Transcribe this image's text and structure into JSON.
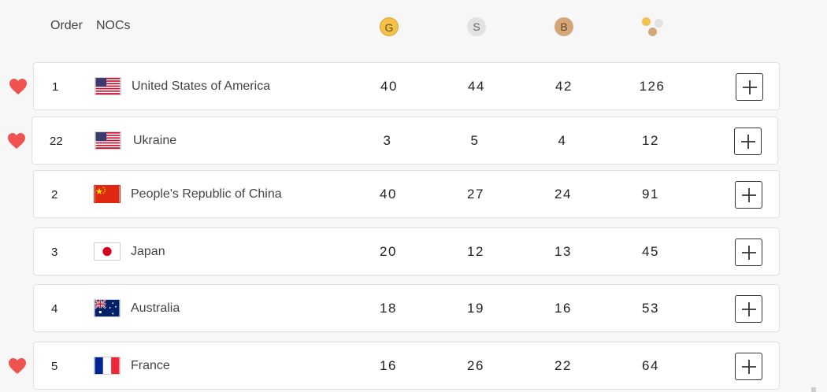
{
  "header": {
    "order_label": "Order",
    "nocs_label": "NOCs",
    "gold_label": "G",
    "silver_label": "S",
    "bronze_label": "B",
    "total_icon": "total-medals-icon"
  },
  "colors": {
    "gold": "#f2c14e",
    "silver": "#e2e2e2",
    "bronze": "#d4a77a",
    "heart": "#ef5350"
  },
  "rows": [
    {
      "order": "1",
      "country": "United States of America",
      "flag": "usa",
      "gold": "40",
      "silver": "44",
      "bronze": "42",
      "total": "126",
      "favorite": true
    },
    {
      "order": "22",
      "country": "Ukraine",
      "flag": "usa",
      "gold": "3",
      "silver": "5",
      "bronze": "4",
      "total": "12",
      "favorite": true
    },
    {
      "order": "2",
      "country": "People's Republic of China",
      "flag": "china",
      "gold": "40",
      "silver": "27",
      "bronze": "24",
      "total": "91",
      "favorite": false
    },
    {
      "order": "3",
      "country": "Japan",
      "flag": "japan",
      "gold": "20",
      "silver": "12",
      "bronze": "13",
      "total": "45",
      "favorite": false
    },
    {
      "order": "4",
      "country": "Australia",
      "flag": "australia",
      "gold": "18",
      "silver": "19",
      "bronze": "16",
      "total": "53",
      "favorite": false
    },
    {
      "order": "5",
      "country": "France",
      "flag": "france",
      "gold": "16",
      "silver": "26",
      "bronze": "22",
      "total": "64",
      "favorite": true
    }
  ]
}
